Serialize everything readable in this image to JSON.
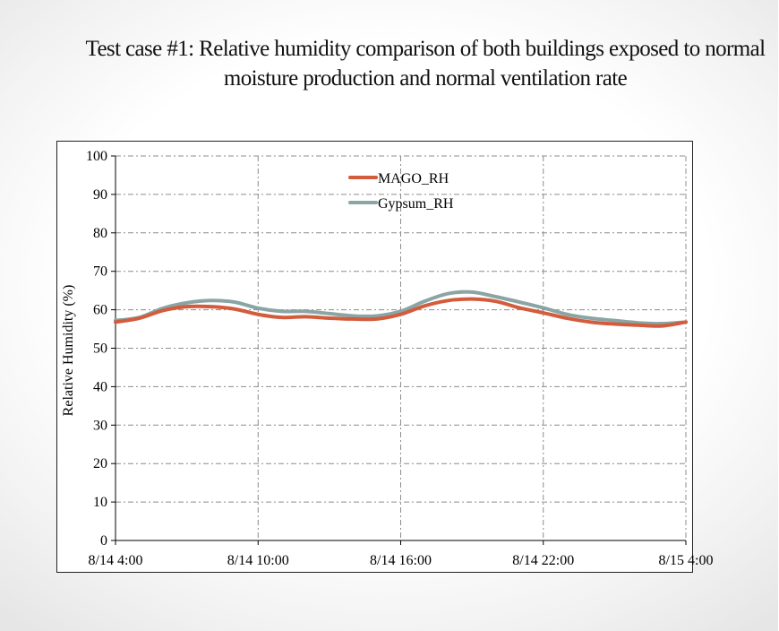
{
  "slide": {
    "title": "Test case #1: Relative humidity comparison of both buildings exposed to normal moisture production and normal ventilation rate"
  },
  "colors": {
    "mago": "#d35c3d",
    "gypsum": "#8aa5a4",
    "grid": "#8c8c8c",
    "axis": "#000000"
  },
  "chart_data": {
    "type": "line",
    "title": "Test case #1: Relative humidity comparison of both buildings exposed to normal moisture production and normal ventilation rate",
    "xlabel": "",
    "ylabel": "Relative Humidity (%)",
    "x_ticks": [
      "8/14 4:00",
      "8/14 10:00",
      "8/14 16:00",
      "8/14 22:00",
      "8/15 4:00"
    ],
    "y_ticks": [
      0,
      10,
      20,
      30,
      40,
      50,
      60,
      70,
      80,
      90,
      100
    ],
    "xlim": [
      "8/14 4:00",
      "8/15 4:00"
    ],
    "ylim": [
      0,
      100
    ],
    "grid": true,
    "legend_position": "top-center",
    "x": [
      "8/14 4:00",
      "8/14 5:00",
      "8/14 6:00",
      "8/14 7:00",
      "8/14 8:00",
      "8/14 9:00",
      "8/14 10:00",
      "8/14 11:00",
      "8/14 12:00",
      "8/14 13:00",
      "8/14 14:00",
      "8/14 15:00",
      "8/14 16:00",
      "8/14 17:00",
      "8/14 18:00",
      "8/14 19:00",
      "8/14 20:00",
      "8/14 21:00",
      "8/14 22:00",
      "8/14 23:00",
      "8/15 0:00",
      "8/15 1:00",
      "8/15 2:00",
      "8/15 3:00",
      "8/15 4:00"
    ],
    "series": [
      {
        "name": "MAGO_RH",
        "color": "#d35c3d",
        "values": [
          56.8,
          57.8,
          59.8,
          60.8,
          60.8,
          60.2,
          58.8,
          58.0,
          58.2,
          57.8,
          57.6,
          57.6,
          58.8,
          61.0,
          62.4,
          62.8,
          62.2,
          60.5,
          59.2,
          57.8,
          56.8,
          56.3,
          56.0,
          55.8,
          56.8
        ]
      },
      {
        "name": "Gypsum_RH",
        "color": "#8aa5a4",
        "values": [
          57.2,
          58.0,
          60.4,
          61.8,
          62.4,
          62.0,
          60.4,
          59.6,
          59.6,
          59.0,
          58.4,
          58.4,
          59.6,
          62.2,
          64.2,
          64.6,
          63.4,
          62.0,
          60.5,
          58.8,
          57.8,
          57.2,
          56.6,
          56.4,
          56.8
        ]
      }
    ]
  }
}
